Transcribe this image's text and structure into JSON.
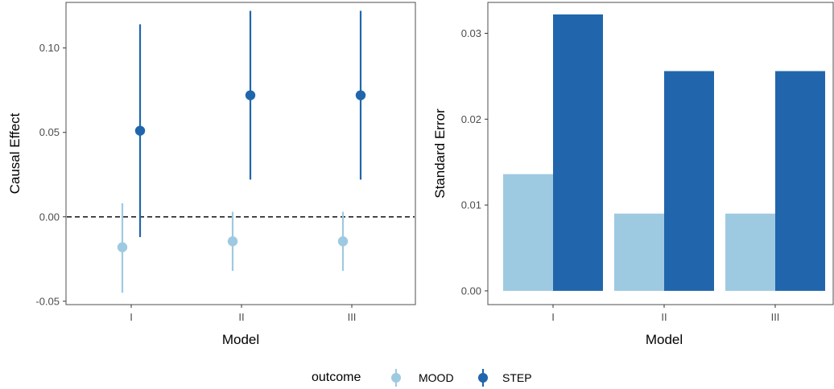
{
  "chart_data": [
    {
      "type": "scatter",
      "subtype": "pointrange",
      "xlabel": "Model",
      "ylabel": "Causal Effect",
      "categories": [
        "I",
        "II",
        "III"
      ],
      "ylim": [
        -0.052,
        0.127
      ],
      "yticks": [
        -0.05,
        0.0,
        0.05,
        0.1
      ],
      "ytick_labels": [
        "-0.05",
        "0.00",
        "0.05",
        "0.10"
      ],
      "reference_line": {
        "y": 0.0,
        "style": "dashed"
      },
      "grid": false,
      "series": [
        {
          "name": "MOOD",
          "color": "#9ecae1",
          "points": [
            {
              "x": "I",
              "y": -0.018,
              "lower": -0.045,
              "upper": 0.008
            },
            {
              "x": "II",
              "y": -0.0145,
              "lower": -0.032,
              "upper": 0.003
            },
            {
              "x": "III",
              "y": -0.0145,
              "lower": -0.032,
              "upper": 0.003
            }
          ]
        },
        {
          "name": "STEP",
          "color": "#2166ac",
          "points": [
            {
              "x": "I",
              "y": 0.051,
              "lower": -0.012,
              "upper": 0.114
            },
            {
              "x": "II",
              "y": 0.072,
              "lower": 0.022,
              "upper": 0.122
            },
            {
              "x": "III",
              "y": 0.072,
              "lower": 0.022,
              "upper": 0.122
            }
          ]
        }
      ]
    },
    {
      "type": "bar",
      "subtype": "grouped",
      "xlabel": "Model",
      "ylabel": "Standard Error",
      "categories": [
        "I",
        "II",
        "III"
      ],
      "ylim": [
        -0.0016,
        0.0336
      ],
      "yticks": [
        0.0,
        0.01,
        0.02,
        0.03
      ],
      "ytick_labels": [
        "0.00",
        "0.01",
        "0.02",
        "0.03"
      ],
      "grid": false,
      "series": [
        {
          "name": "MOOD",
          "color": "#9ecae1",
          "values": [
            0.0136,
            0.009,
            0.009
          ]
        },
        {
          "name": "STEP",
          "color": "#2166ac",
          "values": [
            0.0322,
            0.0256,
            0.0256
          ]
        }
      ]
    }
  ],
  "legend": {
    "title": "outcome",
    "position": "bottom",
    "items": [
      {
        "label": "MOOD",
        "color": "#9ecae1"
      },
      {
        "label": "STEP",
        "color": "#2166ac"
      }
    ]
  }
}
